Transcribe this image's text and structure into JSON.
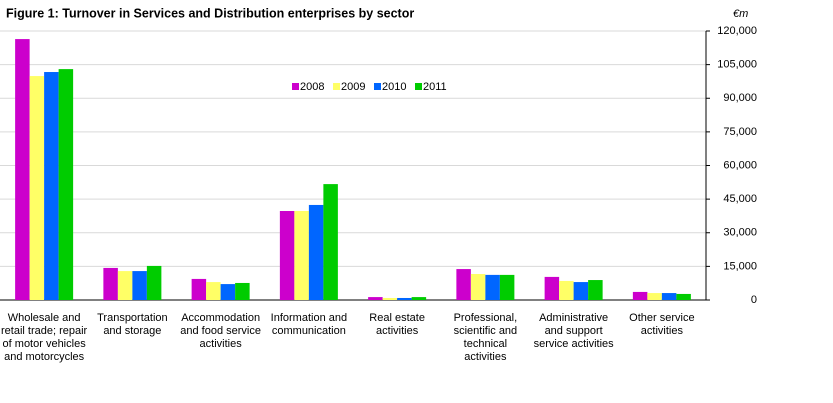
{
  "chart_data": {
    "type": "bar",
    "title": "Figure 1: Turnover in Services and Distribution enterprises by sector",
    "unit": "€m",
    "categories": [
      "Wholesale and retail trade; repair of motor vehicles and motorcycles",
      "Transportation and storage",
      "Accommodation and food service activities",
      "Information and communication",
      "Real estate activities",
      "Professional, scientific and technical activities",
      "Administrative and support service activities",
      "Other service activities"
    ],
    "series": [
      {
        "name": "2008",
        "color": "#cc00cc",
        "values": [
          116400,
          14300,
          9400,
          39700,
          1300,
          13800,
          10300,
          3600
        ]
      },
      {
        "name": "2009",
        "color": "#ffff66",
        "values": [
          99900,
          12900,
          8000,
          39700,
          900,
          11600,
          8500,
          3100
        ]
      },
      {
        "name": "2010",
        "color": "#0066ff",
        "values": [
          101700,
          12900,
          7100,
          42400,
          900,
          11200,
          8000,
          3100
        ]
      },
      {
        "name": "2011",
        "color": "#00cc00",
        "values": [
          103000,
          15200,
          7600,
          51700,
          1300,
          11200,
          8900,
          2700
        ]
      }
    ],
    "ylim": [
      0,
      120000
    ],
    "yticks": [
      0,
      {
        "value": 15000,
        "label": "15,000"
      },
      {
        "value": 30000,
        "label": "30,000"
      },
      {
        "value": 45000,
        "label": "45,000"
      },
      {
        "value": 60000,
        "label": "60,000"
      },
      {
        "value": 75000,
        "label": "75,000"
      },
      {
        "value": 90000,
        "label": "90,000"
      },
      {
        "value": 105000,
        "label": "105,000"
      },
      {
        "value": 120000,
        "label": "120,000"
      }
    ],
    "grid": true,
    "y_axis_side": "right"
  }
}
